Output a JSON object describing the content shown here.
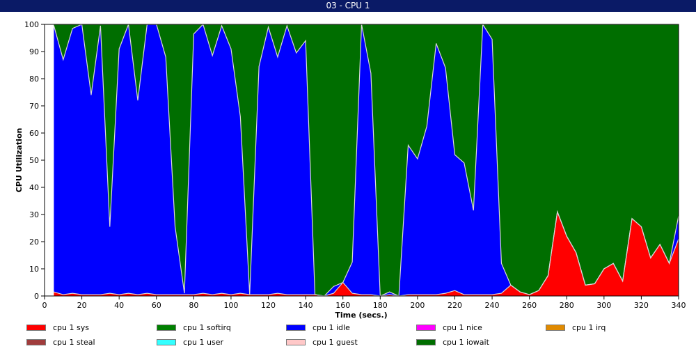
{
  "window": {
    "title": "03 - CPU 1"
  },
  "chart_data": {
    "type": "area",
    "stacked": true,
    "xlabel": "Time (secs.)",
    "ylabel": "CPU Utilization",
    "xlim": [
      0,
      340
    ],
    "ylim": [
      0,
      100
    ],
    "xticks": [
      0,
      20,
      40,
      60,
      80,
      100,
      120,
      140,
      160,
      180,
      200,
      220,
      240,
      260,
      280,
      300,
      320,
      340
    ],
    "yticks": [
      0,
      10,
      20,
      30,
      40,
      50,
      60,
      70,
      80,
      90,
      100
    ],
    "grid": false,
    "legend_position": "bottom",
    "x": [
      5,
      10,
      15,
      20,
      25,
      30,
      35,
      40,
      45,
      50,
      55,
      60,
      65,
      70,
      75,
      80,
      85,
      90,
      95,
      100,
      105,
      110,
      115,
      120,
      125,
      130,
      135,
      140,
      145,
      150,
      155,
      160,
      165,
      170,
      175,
      180,
      185,
      190,
      195,
      200,
      205,
      210,
      215,
      220,
      225,
      230,
      235,
      240,
      245,
      250,
      255,
      260,
      265,
      270,
      275,
      280,
      285,
      290,
      295,
      300,
      305,
      310,
      315,
      320,
      325,
      330,
      335,
      340
    ],
    "series": [
      {
        "name": "cpu 1 sys",
        "color": "#ff0000",
        "values": [
          1.5,
          0.5,
          1,
          0.5,
          0.5,
          0.5,
          1,
          0.5,
          1,
          0.5,
          1,
          0.5,
          0.5,
          0.5,
          0.5,
          0.5,
          1,
          0.5,
          1,
          0.5,
          1,
          0.5,
          0.5,
          0.5,
          1,
          0.5,
          0.5,
          0.5,
          0.5,
          0,
          1,
          5,
          1,
          0.5,
          0.5,
          0,
          0.5,
          0,
          0.5,
          0.5,
          0.5,
          0.5,
          1,
          2,
          0.5,
          0.5,
          0.5,
          0.5,
          1,
          4,
          1.5,
          0.5,
          2,
          7.5,
          31,
          22,
          16,
          4,
          4.5,
          10,
          12,
          5.5,
          28.5,
          25.5,
          14,
          19,
          12,
          21
        ]
      },
      {
        "name": "cpu 1 softirq",
        "color": "#008000",
        "values": [
          0,
          0,
          0,
          0,
          0,
          0,
          0,
          0,
          0,
          0,
          0,
          0,
          0,
          0,
          0,
          0,
          0,
          0,
          0,
          0,
          0,
          0,
          0,
          0,
          0,
          0,
          0,
          0,
          0,
          0,
          0,
          0,
          0,
          0,
          0,
          0,
          0,
          0,
          0,
          0,
          0,
          0,
          0,
          0,
          0,
          0,
          0,
          0,
          0,
          0,
          0,
          0,
          0,
          0,
          0,
          0,
          0,
          0,
          0,
          0,
          0,
          0,
          0,
          0,
          0,
          0,
          0,
          0
        ]
      },
      {
        "name": "cpu 1 idle",
        "color": "#0000ff",
        "values": [
          98,
          86.5,
          97.5,
          99.5,
          73.5,
          99,
          24.5,
          90.5,
          99,
          71.5,
          99,
          99.5,
          87.5,
          25,
          0.5,
          96,
          99,
          88,
          98.5,
          90.5,
          65,
          0,
          84,
          98.5,
          87,
          99,
          89,
          93.5,
          0,
          0,
          2.5,
          0,
          11.5,
          99.5,
          81.5,
          0,
          1,
          0,
          55,
          50,
          62,
          92.5,
          83,
          50,
          48.5,
          31,
          99.5,
          94,
          11,
          0,
          0,
          0,
          0,
          0,
          0,
          0,
          0,
          0,
          0,
          0,
          0,
          0,
          0,
          0,
          0,
          0,
          0,
          8.5
        ]
      },
      {
        "name": "cpu 1 nice",
        "color": "#ff00ff",
        "values": [
          0,
          0,
          0,
          0,
          0,
          0,
          0,
          0,
          0,
          0,
          0,
          0,
          0,
          0,
          0,
          0,
          0,
          0,
          0,
          0,
          0,
          0,
          0,
          0,
          0,
          0,
          0,
          0,
          0,
          0,
          0,
          0,
          0,
          0,
          0,
          0,
          0,
          0,
          0,
          0,
          0,
          0,
          0,
          0,
          0,
          0,
          0,
          0,
          0,
          0,
          0,
          0,
          0,
          0,
          0,
          0,
          0,
          0,
          0,
          0,
          0,
          0,
          0,
          0,
          0,
          0,
          0,
          0
        ]
      },
      {
        "name": "cpu 1 irq",
        "color": "#e08a00",
        "values": [
          0,
          0,
          0,
          0,
          0,
          0,
          0,
          0,
          0,
          0,
          0,
          0,
          0,
          0,
          0,
          0,
          0,
          0,
          0,
          0,
          0,
          0,
          0,
          0,
          0,
          0,
          0,
          0,
          0,
          0,
          0,
          0,
          0,
          0,
          0,
          0,
          0,
          0,
          0,
          0,
          0,
          0,
          0,
          0,
          0,
          0,
          0,
          0,
          0,
          0,
          0,
          0,
          0,
          0,
          0,
          0,
          0,
          0,
          0,
          0,
          0,
          0,
          0,
          0,
          0,
          0,
          0,
          0
        ]
      },
      {
        "name": "cpu 1 steal",
        "color": "#a03c3c",
        "values": [
          0,
          0,
          0,
          0,
          0,
          0,
          0,
          0,
          0,
          0,
          0,
          0,
          0,
          0,
          0,
          0,
          0,
          0,
          0,
          0,
          0,
          0,
          0,
          0,
          0,
          0,
          0,
          0,
          0,
          0,
          0,
          0,
          0,
          0,
          0,
          0,
          0,
          0,
          0,
          0,
          0,
          0,
          0,
          0,
          0,
          0,
          0,
          0,
          0,
          0,
          0,
          0,
          0,
          0,
          0,
          0,
          0,
          0,
          0,
          0,
          0,
          0,
          0,
          0,
          0,
          0,
          0,
          0
        ]
      },
      {
        "name": "cpu 1 user",
        "color": "#33ffff",
        "values": [
          0,
          0,
          0,
          0,
          0,
          0,
          0,
          0,
          0,
          0,
          0,
          0,
          0,
          0,
          0,
          0,
          0,
          0,
          0,
          0,
          0,
          0,
          0,
          0,
          0,
          0,
          0,
          0,
          0,
          0,
          0,
          0,
          0,
          0,
          0,
          0,
          0,
          0,
          0,
          0,
          0,
          0,
          0,
          0,
          0,
          0,
          0,
          0,
          0,
          0,
          0,
          0,
          0,
          0,
          0,
          0,
          0,
          0,
          0,
          0,
          0,
          0,
          0,
          0,
          0,
          0,
          0,
          0
        ]
      },
      {
        "name": "cpu 1 guest",
        "color": "#ffc8c8",
        "values": [
          0,
          0,
          0,
          0,
          0,
          0,
          0,
          0,
          0,
          0,
          0,
          0,
          0,
          0,
          0,
          0,
          0,
          0,
          0,
          0,
          0,
          0,
          0,
          0,
          0,
          0,
          0,
          0,
          0,
          0,
          0,
          0,
          0,
          0,
          0,
          0,
          0,
          0,
          0,
          0,
          0,
          0,
          0,
          0,
          0,
          0,
          0,
          0,
          0,
          0,
          0,
          0,
          0,
          0,
          0,
          0,
          0,
          0,
          0,
          0,
          0,
          0,
          0,
          0,
          0,
          0,
          0,
          0
        ]
      },
      {
        "name": "cpu 1 iowait",
        "color": "#006e00",
        "values": [
          0.5,
          13,
          1.5,
          0,
          26,
          0.5,
          74.5,
          9,
          0,
          28,
          0,
          0,
          12,
          74.5,
          99,
          3.5,
          0,
          11.5,
          0.5,
          9,
          34,
          99.5,
          15.5,
          1,
          12,
          0.5,
          10.5,
          6,
          99.5,
          100,
          96.5,
          95,
          87.5,
          0,
          18,
          100,
          98.5,
          100,
          44.5,
          49.5,
          37.5,
          7,
          16,
          48,
          51,
          68.5,
          0,
          5.5,
          88,
          96,
          98.5,
          99.5,
          98,
          92.5,
          69,
          78,
          84,
          96,
          95.5,
          90,
          88,
          94.5,
          71.5,
          74.5,
          86,
          81,
          88,
          70.5
        ]
      }
    ]
  }
}
